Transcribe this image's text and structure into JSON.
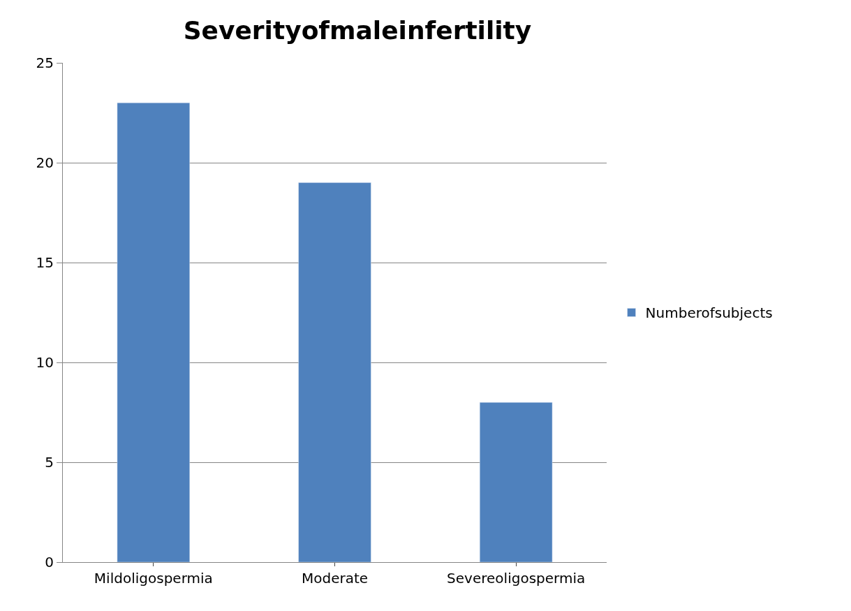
{
  "chart_data": {
    "type": "bar",
    "title": "Severityofmaleinfertility",
    "categories": [
      "Mildoligospermia",
      "Moderate",
      "Severeoligospermia"
    ],
    "series": [
      {
        "name": "Numberofsubjects",
        "color": "#4f81bd",
        "values": [
          23,
          19,
          8
        ]
      }
    ],
    "ylim": [
      0,
      25
    ],
    "yticks": [
      0,
      5,
      10,
      15,
      20,
      25
    ],
    "grid": "y",
    "legend": "right"
  }
}
